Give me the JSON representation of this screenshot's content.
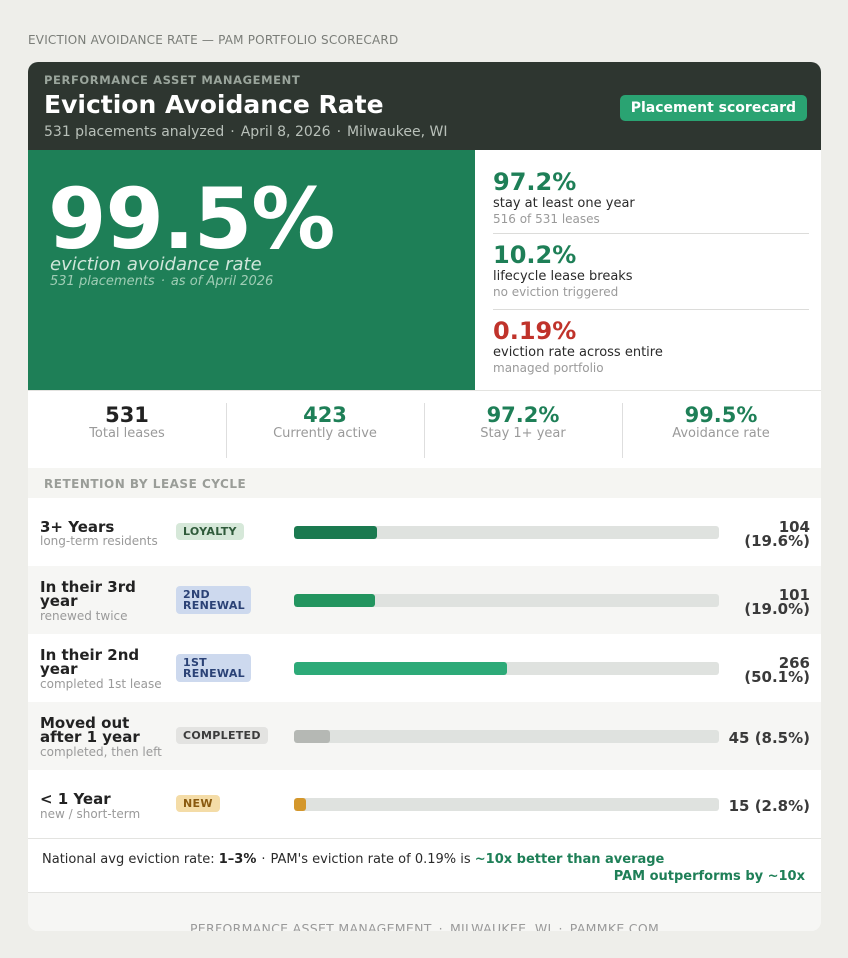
{
  "page_label": "EVICTION AVOIDANCE RATE — PAM PORTFOLIO SCORECARD",
  "header": {
    "org": "PERFORMANCE ASSET MANAGEMENT",
    "title": "Eviction Avoidance Rate",
    "meta": [
      "531 placements analyzed",
      "April 8, 2026",
      "Milwaukee, WI"
    ],
    "meta_separator": "·",
    "badge": "Placement scorecard"
  },
  "hero": {
    "value": "99.5%",
    "label": "eviction avoidance rate",
    "sub": [
      "531 placements",
      "as of April 2026"
    ]
  },
  "side_stats": [
    {
      "value": "97.2%",
      "label": "stay at least one year",
      "note": "516 of 531 leases",
      "color": "#1e7f57"
    },
    {
      "value": "10.2%",
      "label": "lifecycle lease breaks",
      "note": "no eviction triggered",
      "color": "#1e7f57"
    },
    {
      "value": "0.19%",
      "label": "eviction rate across entire",
      "note": "managed portfolio",
      "color": "#c0332b"
    }
  ],
  "kpis": [
    {
      "value": "531",
      "caption": "Total leases"
    },
    {
      "value": "423",
      "caption": "Currently active"
    },
    {
      "value": "97.2%",
      "caption": "Stay 1+ year"
    },
    {
      "value": "99.5%",
      "caption": "Avoidance rate"
    }
  ],
  "section_title": "RETENTION BY LEASE CYCLE",
  "retention_rows": [
    {
      "name": "3+ Years",
      "desc": "long-term residents",
      "tag": "LOYALTY",
      "tag_style": "loyalty",
      "count": "104",
      "pct": "(19.6%)",
      "share": 0.196,
      "color": "#1b7a50"
    },
    {
      "name": "In their 3rd year",
      "desc": "renewed twice",
      "tag": "2ND RENEWAL",
      "tag_style": "renewal",
      "count": "101",
      "pct": "(19.0%)",
      "share": 0.19,
      "color": "#23955f"
    },
    {
      "name": "In their 2nd year",
      "desc": "completed 1st lease",
      "tag": "1ST RENEWAL",
      "tag_style": "renewal",
      "count": "266",
      "pct": "(50.1%)",
      "share": 0.501,
      "color": "#2daa78"
    },
    {
      "name": "Moved out after 1 year",
      "desc": "completed, then left",
      "tag": "COMPLETED",
      "tag_style": "completed",
      "count": "45",
      "pct": "(8.5%)",
      "share": 0.085,
      "color": "#b5b8b4"
    },
    {
      "name": "< 1 Year",
      "desc": "new / short-term",
      "tag": "NEW",
      "tag_style": "new",
      "count": "15",
      "pct": "(2.8%)",
      "share": 0.028,
      "color": "#d4972c"
    }
  ],
  "footer_note": {
    "prefix": "National avg eviction rate:",
    "national_rate": "1–3%",
    "middle": "PAM's eviction rate of 0.19% is",
    "highlight": "~10x better than average",
    "tagline": "PAM outperforms by ~10x"
  },
  "footer": [
    "PERFORMANCE ASSET MANAGEMENT",
    "MILWAUKEE, WI",
    "PAMMKE.COM"
  ]
}
